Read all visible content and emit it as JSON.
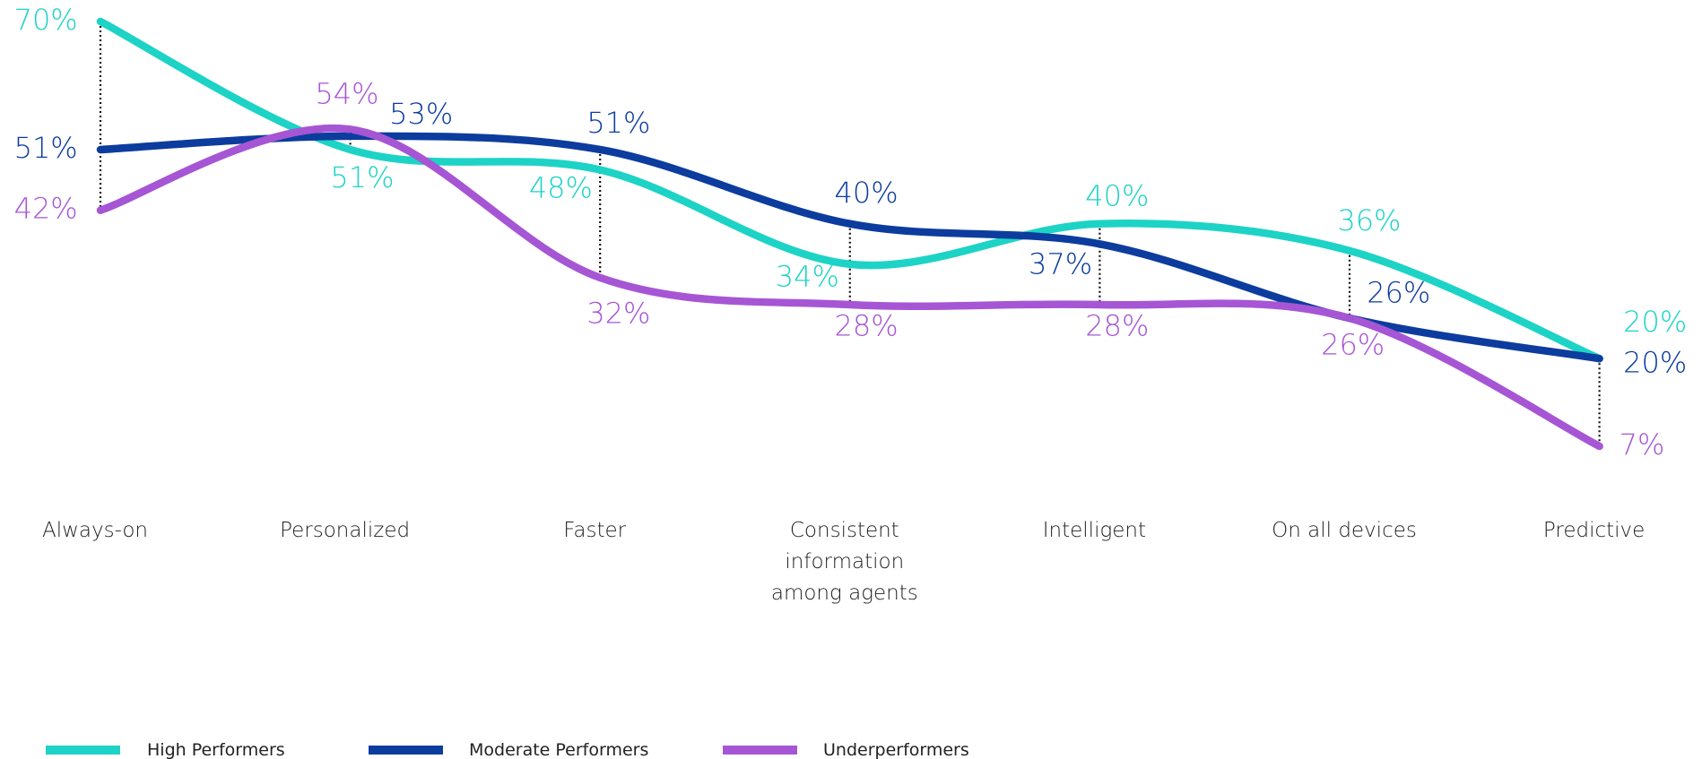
{
  "chart_data": {
    "type": "line",
    "categories": [
      "Always-on",
      "Personalized",
      "Faster",
      "Consistent information among agents",
      "Intelligent",
      "On all devices",
      "Predictive"
    ],
    "series": [
      {
        "name": "High Performers",
        "color": "#1dd3c6",
        "values": [
          70,
          51,
          48,
          34,
          40,
          36,
          20
        ],
        "value_labels": [
          "70%",
          "51%",
          "48%",
          "34%",
          "40%",
          "36%",
          "20%"
        ]
      },
      {
        "name": "Moderate Performers",
        "color": "#0c3c9e",
        "values": [
          51,
          53,
          51,
          40,
          37,
          26,
          20
        ],
        "value_labels": [
          "51%",
          "53%",
          "51%",
          "40%",
          "37%",
          "26%",
          "20%"
        ]
      },
      {
        "name": "Underperformers",
        "color": "#a656d4",
        "values": [
          42,
          54,
          32,
          28,
          28,
          26,
          7
        ],
        "value_labels": [
          "42%",
          "54%",
          "32%",
          "28%",
          "28%",
          "26%",
          "7%"
        ]
      }
    ]
  }
}
